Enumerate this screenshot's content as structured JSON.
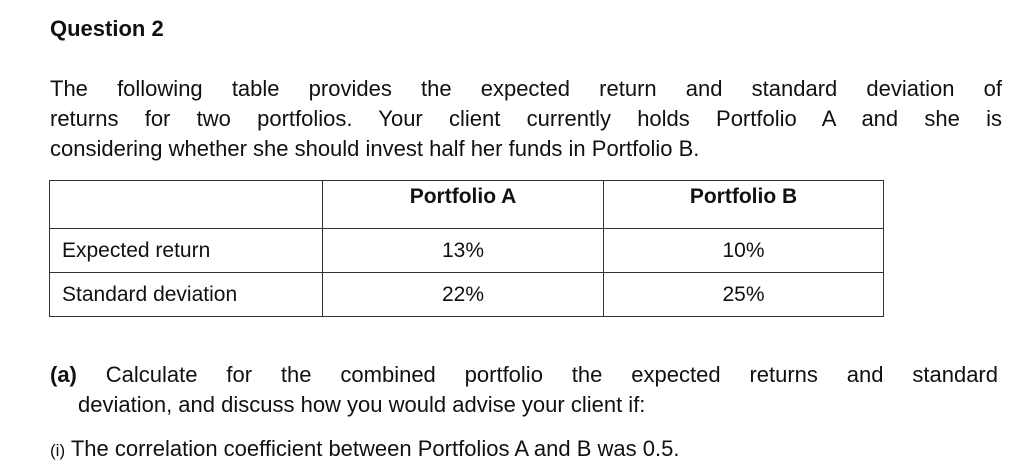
{
  "title": "Question 2",
  "paragraph": {
    "lines": [
      "The following table provides the expected return and standard deviation of",
      "returns for two portfolios. Your client currently holds Portfolio A and she is",
      "considering whether she should invest half her funds in Portfolio B."
    ]
  },
  "table": {
    "header": [
      "Portfolio A",
      "Portfolio B"
    ],
    "rows": [
      [
        "Expected return",
        "13%",
        "10%"
      ],
      [
        "Standard deviation",
        "22%",
        "25%"
      ]
    ]
  },
  "part_a": {
    "label": "(a)",
    "lines": [
      "Calculate for the combined portfolio the expected returns and standard",
      "deviation, and discuss how you would advise your client if:"
    ]
  },
  "part_i": {
    "label": "(i)",
    "text": "The correlation coefficient between Portfolios A and B was 0.5."
  }
}
